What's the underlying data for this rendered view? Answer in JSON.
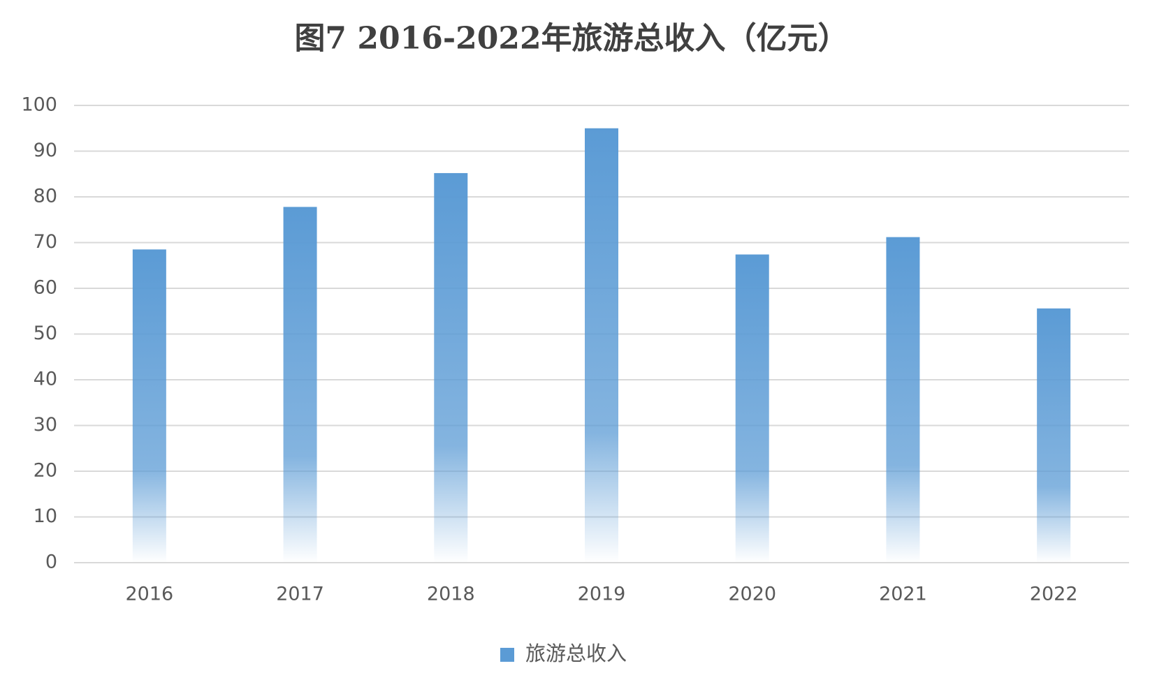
{
  "chart_data": {
    "type": "bar",
    "title": "图7 2016-2022年旅游总收入（亿元）",
    "categories": [
      "2016",
      "2017",
      "2018",
      "2019",
      "2020",
      "2021",
      "2022"
    ],
    "series": [
      {
        "name": "旅游总收入",
        "color": "#5b9bd5",
        "values": [
          68.5,
          77.8,
          85.2,
          95.0,
          67.4,
          71.2,
          55.6
        ]
      }
    ],
    "ylim": [
      0,
      100
    ],
    "yticks": [
      0,
      10,
      20,
      30,
      40,
      50,
      60,
      70,
      80,
      90,
      100
    ],
    "grid": true,
    "legend": "bottom"
  }
}
